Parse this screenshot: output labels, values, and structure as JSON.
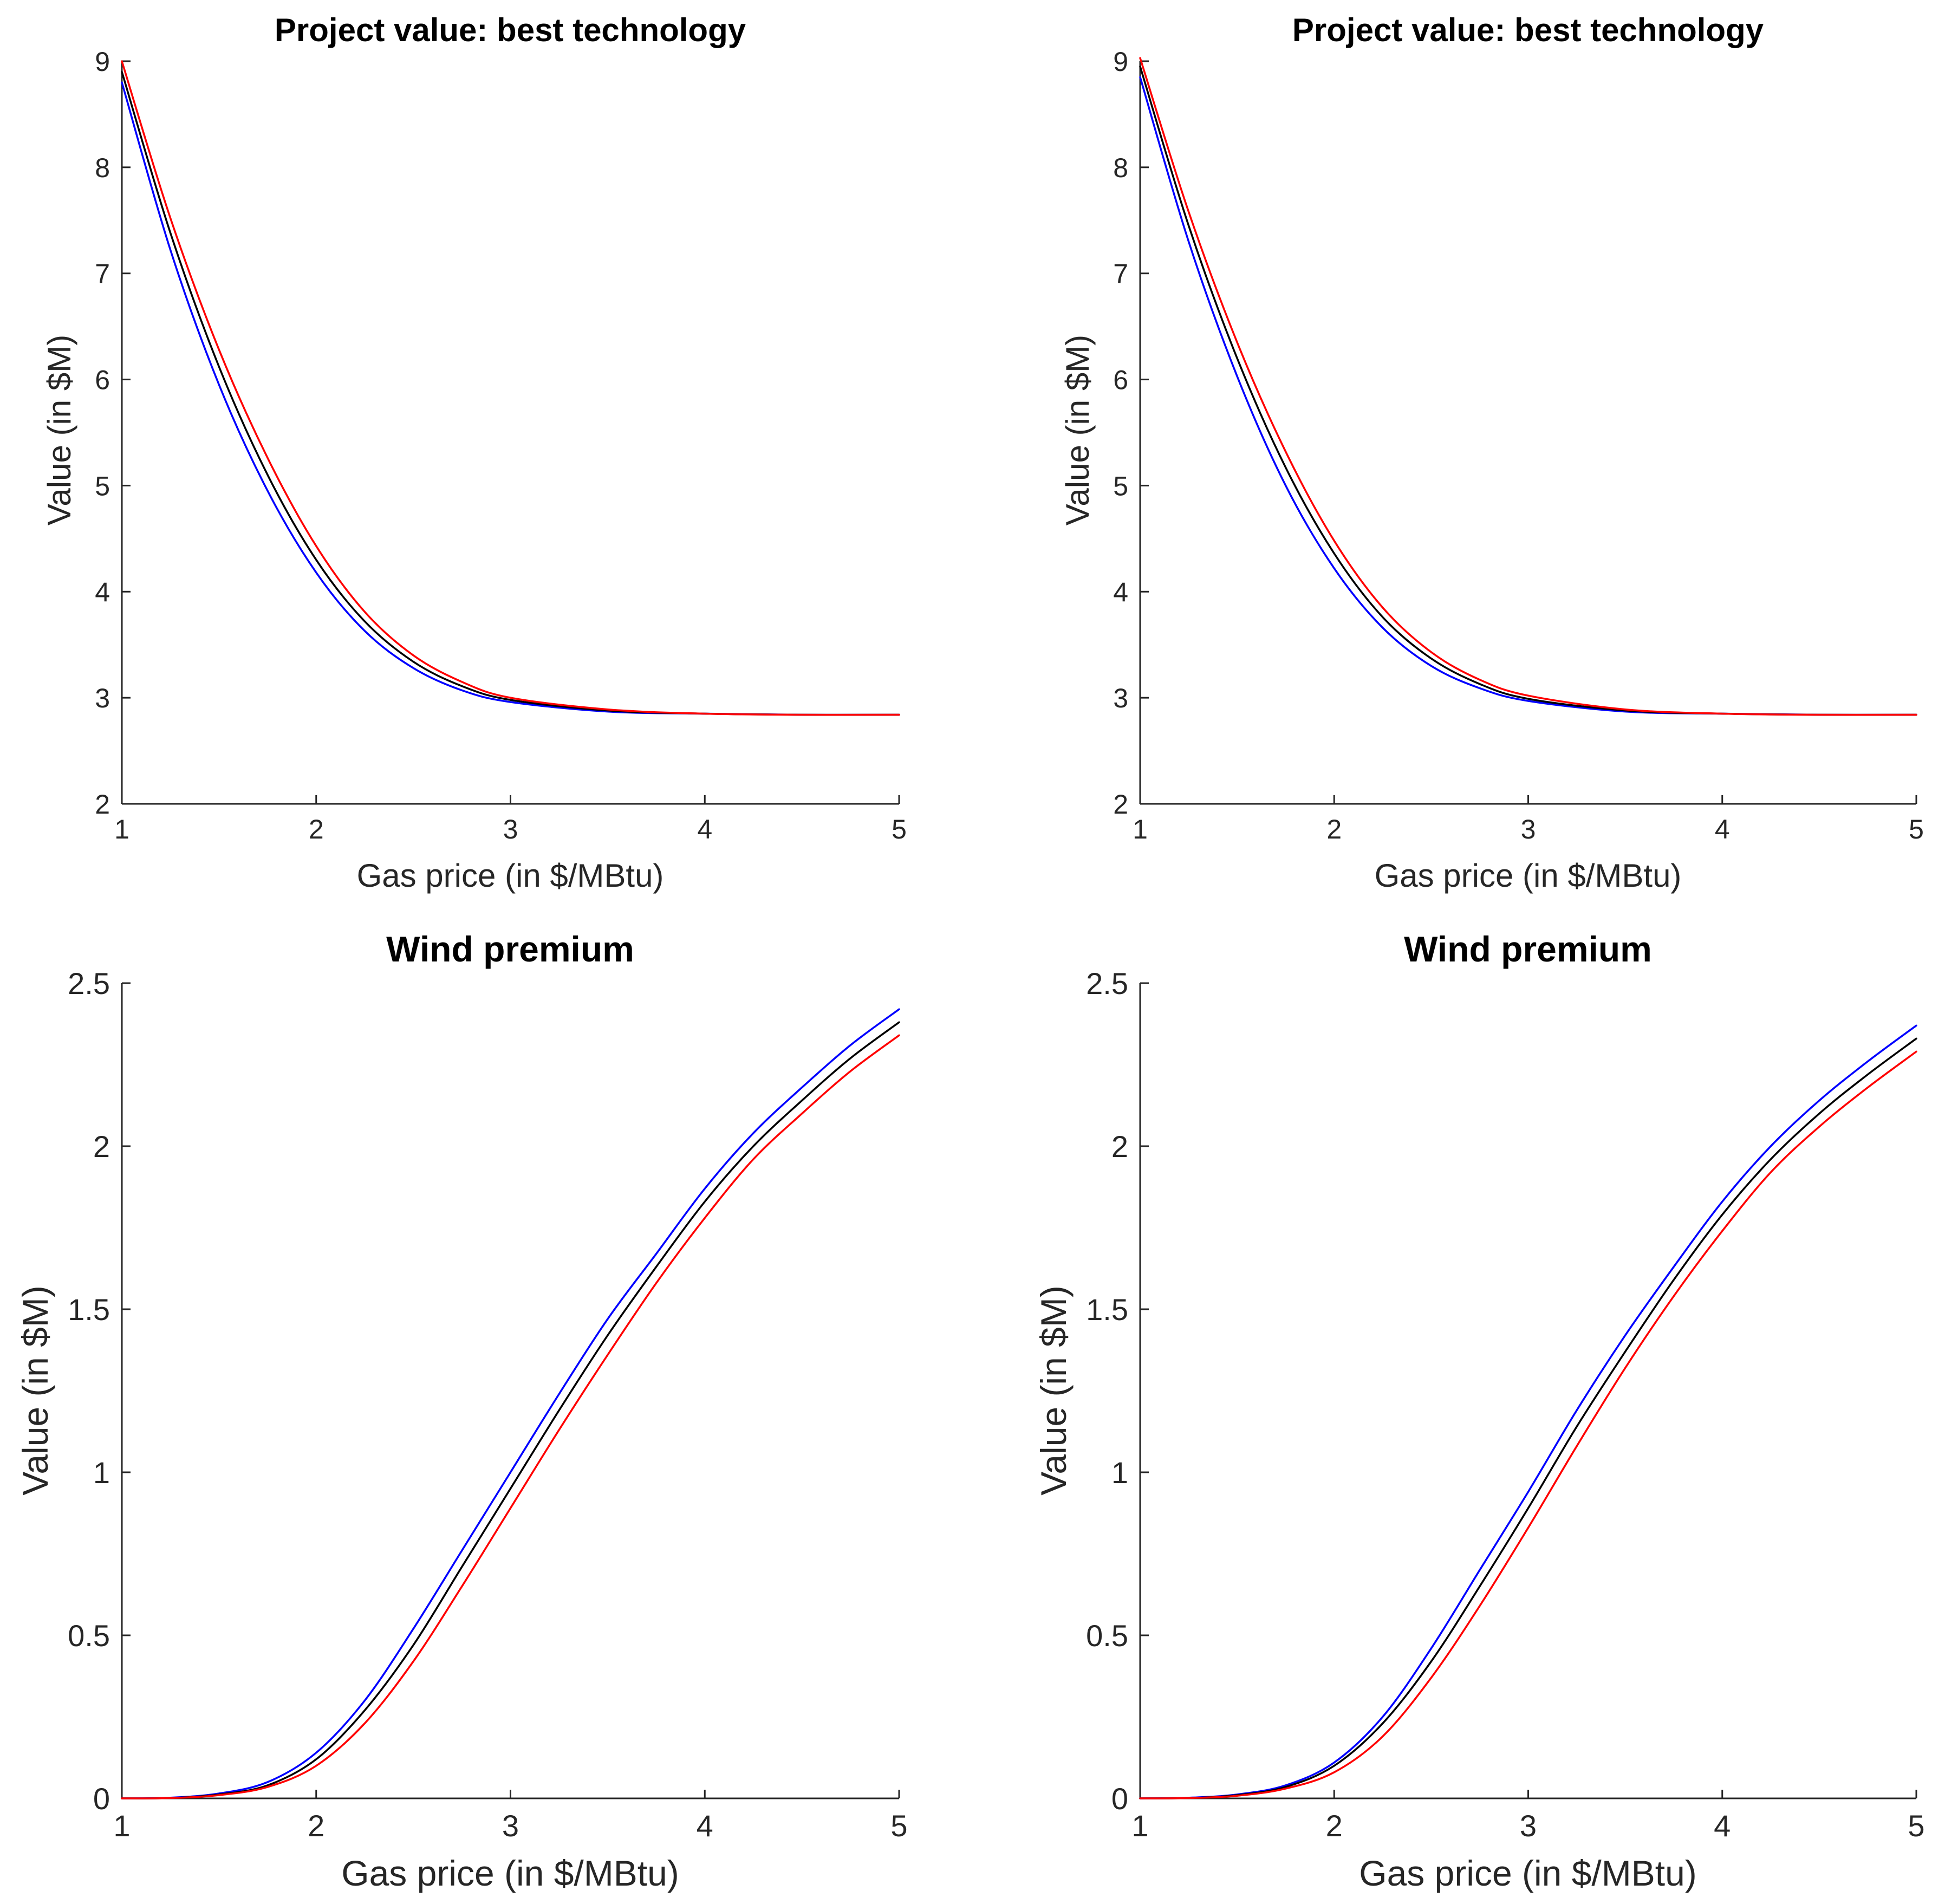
{
  "colors": {
    "series_blue": "#0000ff",
    "series_black": "#000000",
    "series_red": "#ff0000",
    "axis": "#262626",
    "background": "#ffffff"
  },
  "chart_data": [
    {
      "id": "top-left",
      "type": "line",
      "title": "Project value: best technology",
      "xlabel": "Gas price (in $/MBtu)",
      "ylabel": "Value (in $M)",
      "xlim": [
        1,
        5
      ],
      "ylim": [
        2,
        9
      ],
      "xticks": [
        "1",
        "2",
        "3",
        "4",
        "5"
      ],
      "yticks": [
        "2",
        "3",
        "4",
        "5",
        "6",
        "7",
        "8",
        "9"
      ],
      "grid": false,
      "x": [
        1.0,
        1.25,
        1.5,
        1.75,
        2.0,
        2.25,
        2.5,
        2.75,
        3.0,
        3.5,
        4.0,
        4.5,
        5.0
      ],
      "series": [
        {
          "name": "blue",
          "color": "series_blue",
          "values": [
            8.8,
            7.22,
            5.95,
            4.95,
            4.18,
            3.63,
            3.28,
            3.07,
            2.96,
            2.87,
            2.85,
            2.84,
            2.84
          ]
        },
        {
          "name": "black",
          "color": "series_black",
          "values": [
            8.9,
            7.38,
            6.12,
            5.1,
            4.3,
            3.72,
            3.34,
            3.11,
            2.98,
            2.88,
            2.85,
            2.84,
            2.84
          ]
        },
        {
          "name": "red",
          "color": "series_red",
          "values": [
            9.0,
            7.52,
            6.28,
            5.26,
            4.43,
            3.81,
            3.4,
            3.15,
            3.0,
            2.89,
            2.85,
            2.84,
            2.84
          ]
        }
      ]
    },
    {
      "id": "top-right",
      "type": "line",
      "title": "Project value: best technology",
      "xlabel": "Gas price (in $/MBtu)",
      "ylabel": "Value (in $M)",
      "xlim": [
        1,
        5
      ],
      "ylim": [
        2,
        9
      ],
      "xticks": [
        "1",
        "2",
        "3",
        "4",
        "5"
      ],
      "yticks": [
        "2",
        "3",
        "4",
        "5",
        "6",
        "7",
        "8",
        "9"
      ],
      "grid": false,
      "x": [
        1.0,
        1.25,
        1.5,
        1.75,
        2.0,
        2.25,
        2.5,
        2.75,
        3.0,
        3.5,
        4.0,
        4.5,
        5.0
      ],
      "series": [
        {
          "name": "blue",
          "color": "series_blue",
          "values": [
            8.85,
            7.3,
            6.03,
            5.0,
            4.22,
            3.66,
            3.3,
            3.09,
            2.97,
            2.87,
            2.85,
            2.84,
            2.84
          ]
        },
        {
          "name": "black",
          "color": "series_black",
          "values": [
            8.95,
            7.45,
            6.2,
            5.17,
            4.36,
            3.76,
            3.37,
            3.13,
            2.99,
            2.88,
            2.85,
            2.84,
            2.84
          ]
        },
        {
          "name": "red",
          "color": "series_red",
          "values": [
            9.03,
            7.58,
            6.35,
            5.32,
            4.48,
            3.85,
            3.43,
            3.17,
            3.02,
            2.89,
            2.85,
            2.84,
            2.84
          ]
        }
      ]
    },
    {
      "id": "bottom-left",
      "type": "line",
      "title": "Wind premium",
      "xlabel": "Gas price (in $/MBtu)",
      "ylabel": "Value (in $M)",
      "xlim": [
        1,
        5
      ],
      "ylim": [
        0,
        2.5
      ],
      "xticks": [
        "1",
        "2",
        "3",
        "4",
        "5"
      ],
      "yticks": [
        "0",
        "0.5",
        "1",
        "1.5",
        "2",
        "2.5"
      ],
      "grid": false,
      "x": [
        1.0,
        1.25,
        1.5,
        1.75,
        2.0,
        2.25,
        2.5,
        2.75,
        3.0,
        3.25,
        3.5,
        3.75,
        4.0,
        4.25,
        4.5,
        4.75,
        5.0
      ],
      "series": [
        {
          "name": "blue",
          "color": "series_blue",
          "values": [
            0.0,
            0.002,
            0.015,
            0.05,
            0.14,
            0.3,
            0.52,
            0.76,
            1.0,
            1.24,
            1.47,
            1.67,
            1.87,
            2.04,
            2.18,
            2.31,
            2.42
          ]
        },
        {
          "name": "black",
          "color": "series_black",
          "values": [
            0.0,
            0.001,
            0.012,
            0.04,
            0.12,
            0.27,
            0.47,
            0.71,
            0.95,
            1.19,
            1.42,
            1.63,
            1.83,
            2.0,
            2.14,
            2.27,
            2.38
          ]
        },
        {
          "name": "red",
          "color": "series_red",
          "values": [
            0.0,
            0.001,
            0.01,
            0.035,
            0.1,
            0.23,
            0.42,
            0.65,
            0.89,
            1.13,
            1.36,
            1.58,
            1.78,
            1.96,
            2.1,
            2.23,
            2.34
          ]
        }
      ]
    },
    {
      "id": "bottom-right",
      "type": "line",
      "title": "Wind premium",
      "xlabel": "Gas price (in $/MBtu)",
      "ylabel": "Value (in $M)",
      "xlim": [
        1,
        5
      ],
      "ylim": [
        0,
        2.5
      ],
      "xticks": [
        "1",
        "2",
        "3",
        "4",
        "5"
      ],
      "yticks": [
        "0",
        "0.5",
        "1",
        "1.5",
        "2",
        "2.5"
      ],
      "grid": false,
      "x": [
        1.0,
        1.25,
        1.5,
        1.75,
        2.0,
        2.25,
        2.5,
        2.75,
        3.0,
        3.25,
        3.5,
        3.75,
        4.0,
        4.25,
        4.5,
        4.75,
        5.0
      ],
      "series": [
        {
          "name": "blue",
          "color": "series_blue",
          "values": [
            0.0,
            0.002,
            0.012,
            0.04,
            0.11,
            0.25,
            0.46,
            0.7,
            0.94,
            1.19,
            1.42,
            1.63,
            1.83,
            2.0,
            2.14,
            2.26,
            2.37
          ]
        },
        {
          "name": "black",
          "color": "series_black",
          "values": [
            0.0,
            0.001,
            0.01,
            0.035,
            0.1,
            0.23,
            0.42,
            0.65,
            0.89,
            1.14,
            1.37,
            1.59,
            1.79,
            1.96,
            2.1,
            2.22,
            2.33
          ]
        },
        {
          "name": "red",
          "color": "series_red",
          "values": [
            0.0,
            0.001,
            0.008,
            0.03,
            0.08,
            0.19,
            0.37,
            0.59,
            0.83,
            1.08,
            1.32,
            1.54,
            1.74,
            1.92,
            2.06,
            2.18,
            2.29
          ]
        }
      ]
    }
  ]
}
